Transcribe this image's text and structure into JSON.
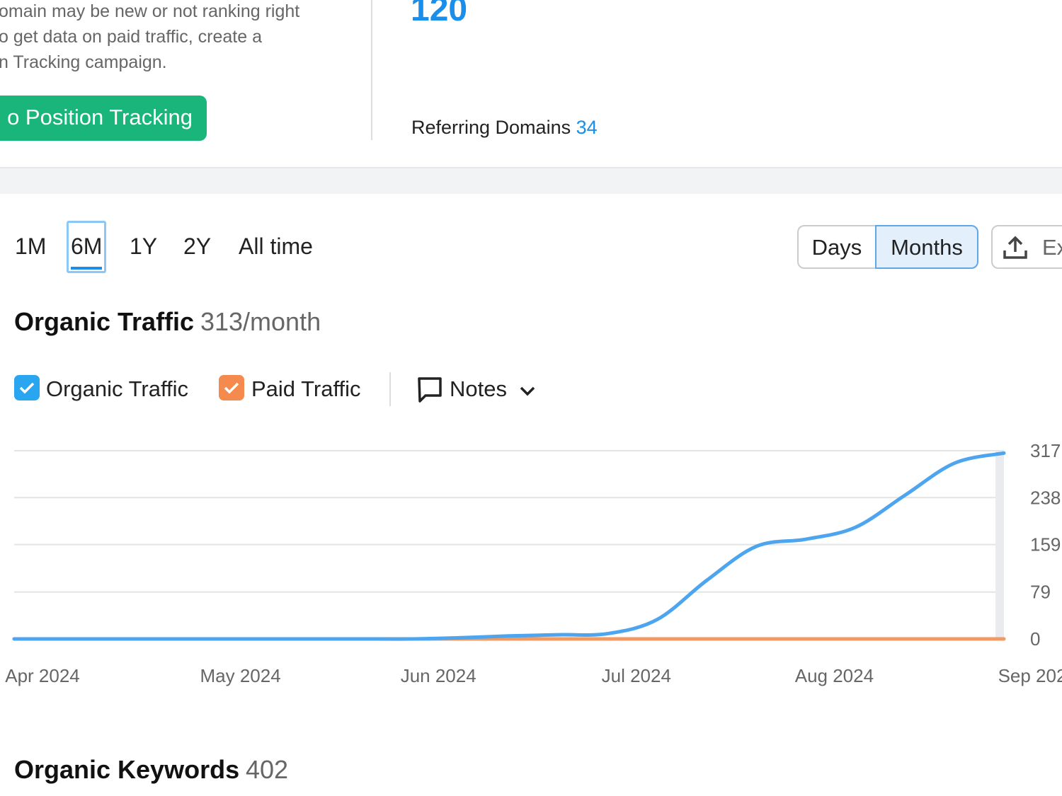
{
  "intro": {
    "lines": [
      "omain may be new or not ranking right",
      "o get data on paid traffic, create a",
      "n Tracking campaign."
    ],
    "button": "o Position Tracking"
  },
  "backlinks": {
    "value": 120,
    "label": "Referring Domains",
    "count": 34
  },
  "periods": [
    "1M",
    "6M",
    "1Y",
    "2Y",
    "All time"
  ],
  "granularity": [
    "Days",
    "Months"
  ],
  "export": "Ex",
  "traffic": {
    "title": "Organic Traffic",
    "value": "313/month"
  },
  "notes": "Notes",
  "chart_data": {
    "type": "line",
    "categories": [
      "Apr 2024",
      null,
      null,
      null,
      "May 2024",
      null,
      null,
      null,
      "Jun 2024",
      null,
      null,
      null,
      "Jul 2024",
      null,
      null,
      null,
      "Aug 2024",
      null,
      null,
      null,
      "Sep 202"
    ],
    "series": [
      {
        "name": "Organic Traffic",
        "color": "#4ea5ef",
        "values": [
          0,
          0,
          0,
          0,
          0,
          0,
          0,
          0,
          0,
          2,
          5,
          7,
          9,
          33,
          99,
          156,
          168,
          188,
          242,
          296,
          313
        ]
      },
      {
        "name": "Paid Traffic",
        "color": "#f39a62",
        "values": [
          0,
          0,
          0,
          0,
          0,
          0,
          0,
          0,
          0,
          0,
          0,
          0,
          0,
          0,
          0,
          0,
          0,
          0,
          0,
          0,
          0
        ]
      }
    ],
    "ylim": [
      0,
      317
    ],
    "yticks": [
      0,
      79,
      159,
      238,
      317
    ],
    "grid": true
  },
  "keywords": {
    "title": "Organic Keywords",
    "value": 402
  }
}
